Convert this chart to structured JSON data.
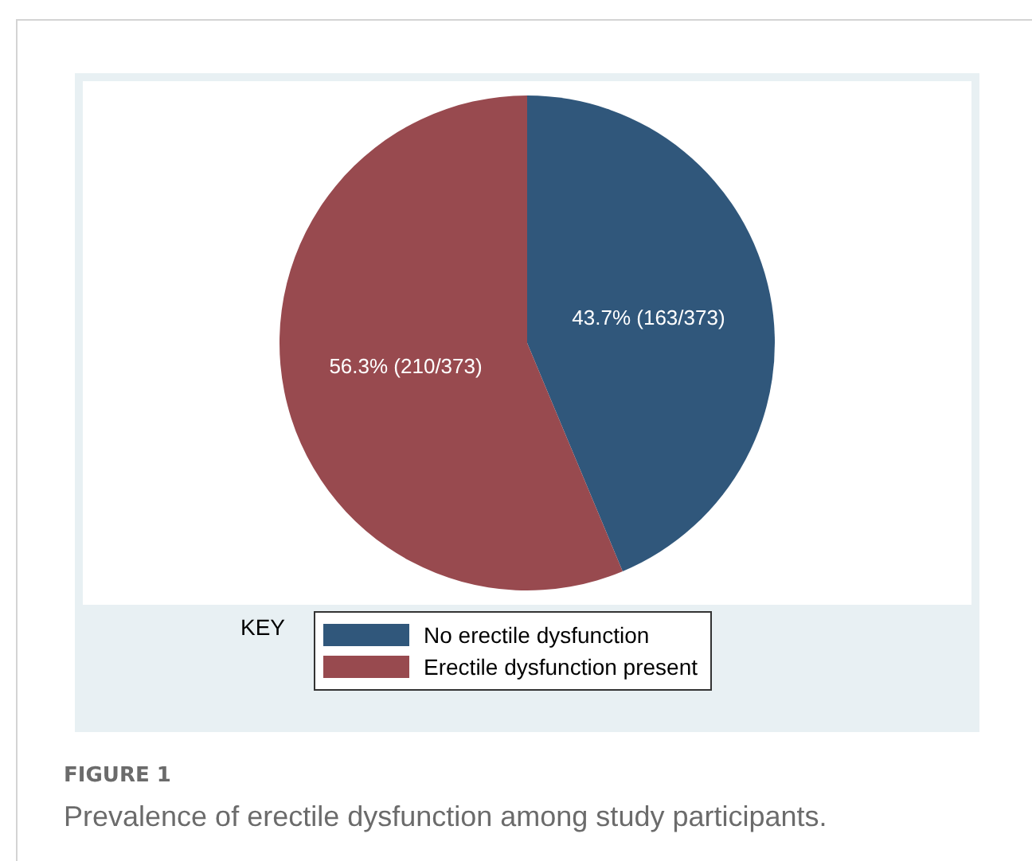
{
  "chart_data": {
    "type": "pie",
    "title": "FIGURE 1",
    "subtitle": "Prevalence of erectile dysfunction among study participants.",
    "legend_title": "KEY",
    "legend": "bottom",
    "categories": [
      "No erectile dysfunction",
      "Erectile dysfunction present"
    ],
    "values": [
      43.7,
      56.3
    ],
    "colors": [
      "#30577b",
      "#984a4f"
    ],
    "value_labels": [
      "43.7% (163/373)",
      "56.3% (210/373)"
    ]
  }
}
